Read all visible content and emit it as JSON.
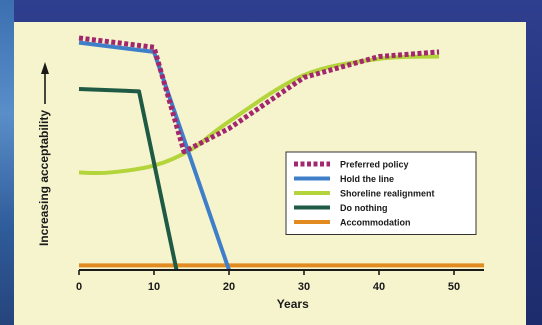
{
  "colors": {
    "preferred": "#a3276c",
    "hold": "#3f7fca",
    "realign": "#b4d43c",
    "nothing": "#1f5a45",
    "accommodation": "#e08a1f",
    "panel": "#f6f4cd",
    "background": "#27347c"
  },
  "chart_data": {
    "type": "line",
    "xlabel": "Years",
    "ylabel": "Increasing acceptability",
    "xlim": [
      0,
      54
    ],
    "ylim": [
      0,
      100
    ],
    "xticks": [
      "0",
      "10",
      "20",
      "30",
      "40",
      "50"
    ],
    "grid": false,
    "legend": "center-right",
    "series": [
      {
        "name": "Preferred policy",
        "color": "#a3276c",
        "dash": true,
        "x": [
          0,
          10,
          14,
          20,
          30,
          40,
          48
        ],
        "y": [
          100,
          96,
          51,
          61,
          83,
          92,
          94
        ]
      },
      {
        "name": "Hold the line",
        "color": "#3f7fca",
        "dash": false,
        "x": [
          0,
          10,
          20
        ],
        "y": [
          98,
          94,
          0
        ]
      },
      {
        "name": "Shoreline realignment",
        "color": "#b4d43c",
        "dash": false,
        "x": [
          0,
          4,
          10,
          15,
          20,
          30,
          40,
          48
        ],
        "y": [
          42,
          42,
          45,
          52,
          64,
          84,
          91,
          92
        ]
      },
      {
        "name": "Do nothing",
        "color": "#1f5a45",
        "dash": false,
        "x": [
          0,
          8,
          13
        ],
        "y": [
          78,
          77,
          0
        ]
      },
      {
        "name": "Accommodation",
        "color": "#e08a1f",
        "dash": false,
        "x": [
          0,
          54
        ],
        "y": [
          2,
          2
        ]
      }
    ]
  }
}
